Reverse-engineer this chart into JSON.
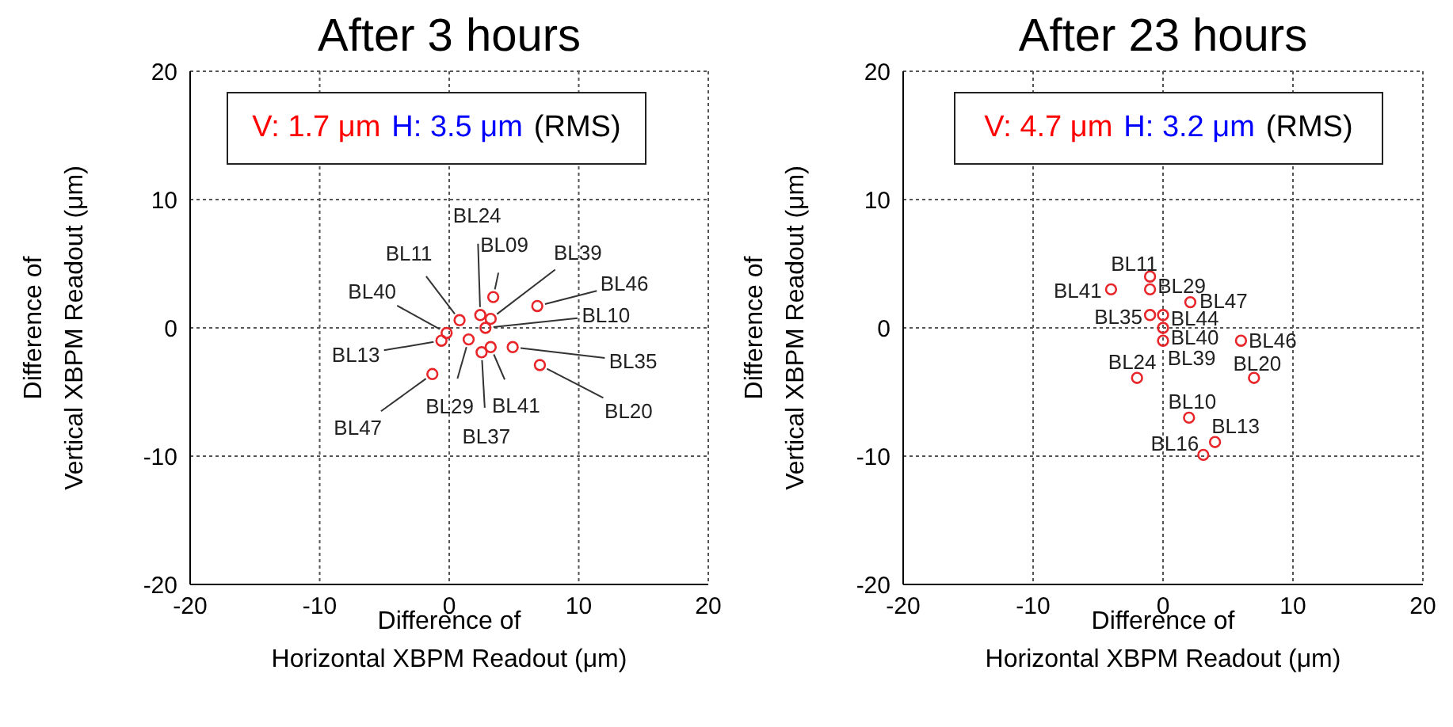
{
  "chart_data": [
    {
      "type": "scatter",
      "title": "After 3 hours",
      "xlabel": "Difference of\nHorizontal XBPM Readout (μm)",
      "ylabel": "Difference of\nVertical XBPM Readout (μm)",
      "xlim": [
        -20,
        20
      ],
      "ylim": [
        -20,
        20
      ],
      "xticks": [
        -20,
        -10,
        0,
        10,
        20
      ],
      "yticks": [
        -20,
        -10,
        0,
        10,
        20
      ],
      "grid": true,
      "legend": false,
      "marker": "circle",
      "series": [
        {
          "color": "#e8262a",
          "x": [
            0.8,
            2.4,
            3.4,
            3.2,
            6.8,
            2.8,
            -0.2,
            -0.6,
            1.5,
            2.5,
            3.2,
            4.9,
            7.0,
            -1.3
          ],
          "values": [
            0.6,
            1.0,
            2.4,
            0.7,
            1.7,
            0,
            -0.4,
            -1.0,
            -0.9,
            -1.9,
            -1.5,
            -1.5,
            -2.9,
            -3.6
          ]
        }
      ],
      "annotations": [
        "V: 1.7 μm",
        "H: 3.5 μm",
        "(RMS)",
        {
          "text": "BL11",
          "x": 0.8,
          "y": 0.6
        },
        {
          "text": "BL24",
          "x": 2.4,
          "y": 1.0
        },
        {
          "text": "BL09",
          "x": 3.4,
          "y": 2.4
        },
        {
          "text": "BL39",
          "x": 3.2,
          "y": 0.7
        },
        {
          "text": "BL46",
          "x": 6.8,
          "y": 1.7
        },
        {
          "text": "BL10",
          "x": 2.8,
          "y": 0
        },
        {
          "text": "BL40",
          "x": -0.2,
          "y": -0.4
        },
        {
          "text": "BL13",
          "x": -0.6,
          "y": -1.0
        },
        {
          "text": "BL29",
          "x": 1.5,
          "y": -0.9
        },
        {
          "text": "BL37",
          "x": 2.5,
          "y": -1.9
        },
        {
          "text": "BL41",
          "x": 3.2,
          "y": -1.5
        },
        {
          "text": "BL35",
          "x": 4.9,
          "y": -1.5
        },
        {
          "text": "BL20",
          "x": 7.0,
          "y": -2.9
        },
        {
          "text": "BL47",
          "x": -1.3,
          "y": -3.6
        }
      ]
    },
    {
      "type": "scatter",
      "title": "After 23 hours",
      "xlabel": "Difference of\nHorizontal XBPM Readout (μm)",
      "ylabel": "Difference of\nVertical XBPM Readout (μm)",
      "xlim": [
        -20,
        20
      ],
      "ylim": [
        -20,
        20
      ],
      "xticks": [
        -20,
        -10,
        0,
        10,
        20
      ],
      "yticks": [
        -20,
        -10,
        0,
        10,
        20
      ],
      "grid": true,
      "legend": false,
      "marker": "circle",
      "series": [
        {
          "color": "#e8262a",
          "x": [
            -1.0,
            -1.0,
            -4.0,
            2.1,
            -1.0,
            0,
            0,
            0,
            6.0,
            7.0,
            -2.0,
            2.0,
            4.0,
            3.1
          ],
          "values": [
            4.0,
            3.0,
            3.0,
            2.0,
            1.0,
            1.0,
            0,
            -1.0,
            -1.0,
            -3.9,
            -3.9,
            -7.0,
            -8.9,
            -9.9
          ]
        }
      ],
      "annotations": [
        "V: 4.7 μm",
        "H: 3.2 μm",
        "(RMS)",
        {
          "text": "BL11",
          "x": -1.0,
          "y": 4.0
        },
        {
          "text": "BL29",
          "x": -1.0,
          "y": 3.0
        },
        {
          "text": "BL41",
          "x": -4.0,
          "y": 3.0
        },
        {
          "text": "BL47",
          "x": 2.1,
          "y": 2.0
        },
        {
          "text": "BL35",
          "x": -1.0,
          "y": 1.0
        },
        {
          "text": "BL44",
          "x": 0,
          "y": 1.0
        },
        {
          "text": "BL40",
          "x": 0,
          "y": 0
        },
        {
          "text": "BL39",
          "x": 0,
          "y": -1.0
        },
        {
          "text": "BL46",
          "x": 6.0,
          "y": -1.0
        },
        {
          "text": "BL20",
          "x": 7.0,
          "y": -3.9
        },
        {
          "text": "BL24",
          "x": -2.0,
          "y": -3.9
        },
        {
          "text": "BL10",
          "x": 2.0,
          "y": -7.0
        },
        {
          "text": "BL13",
          "x": 4.0,
          "y": -8.9
        },
        {
          "text": "BL16",
          "x": 3.1,
          "y": -9.9
        }
      ]
    }
  ]
}
